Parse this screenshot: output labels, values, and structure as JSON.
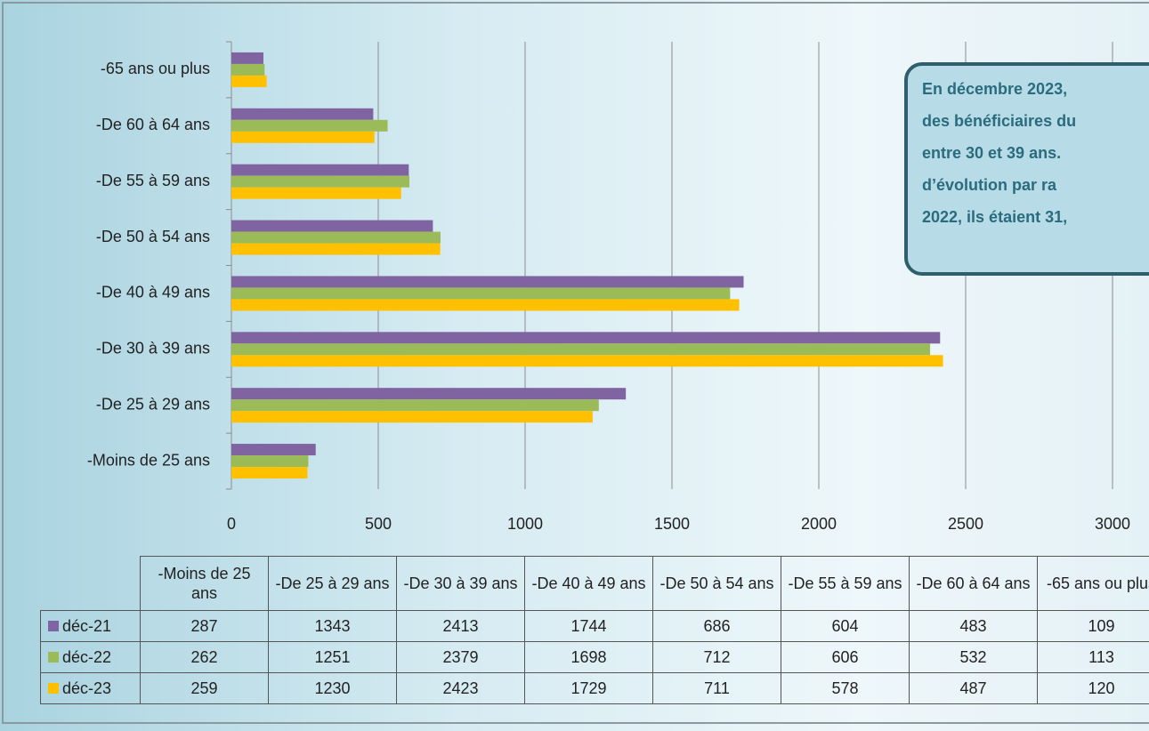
{
  "chart_data": {
    "type": "barh",
    "categories": [
      "-Moins de 25 ans",
      "-De 25 à 29 ans",
      "-De 30 à 39 ans",
      "-De 40 à 49 ans",
      "-De 50 à 54 ans",
      "-De 55 à 59 ans",
      "-De 60 à 64 ans",
      "-65 ans ou plus"
    ],
    "series": [
      {
        "name": "déc-21",
        "color": "#8064a2",
        "values": [
          287,
          1343,
          2413,
          1744,
          686,
          604,
          483,
          109
        ]
      },
      {
        "name": "déc-22",
        "color": "#9bbb59",
        "values": [
          262,
          1251,
          2379,
          1698,
          712,
          606,
          532,
          113
        ]
      },
      {
        "name": "déc-23",
        "color": "#ffc000",
        "values": [
          259,
          1230,
          2423,
          1729,
          711,
          578,
          487,
          120
        ]
      }
    ],
    "xlim": [
      0,
      3000
    ],
    "xticks": [
      0,
      500,
      1000,
      1500,
      2000,
      2500,
      3000
    ],
    "grid": true,
    "annotation": [
      "En décembre 2023,",
      "des bénéficiaires du",
      "entre 30 et 39 ans.",
      "d’évolution par ra",
      "2022, ils étaient 31,"
    ]
  }
}
